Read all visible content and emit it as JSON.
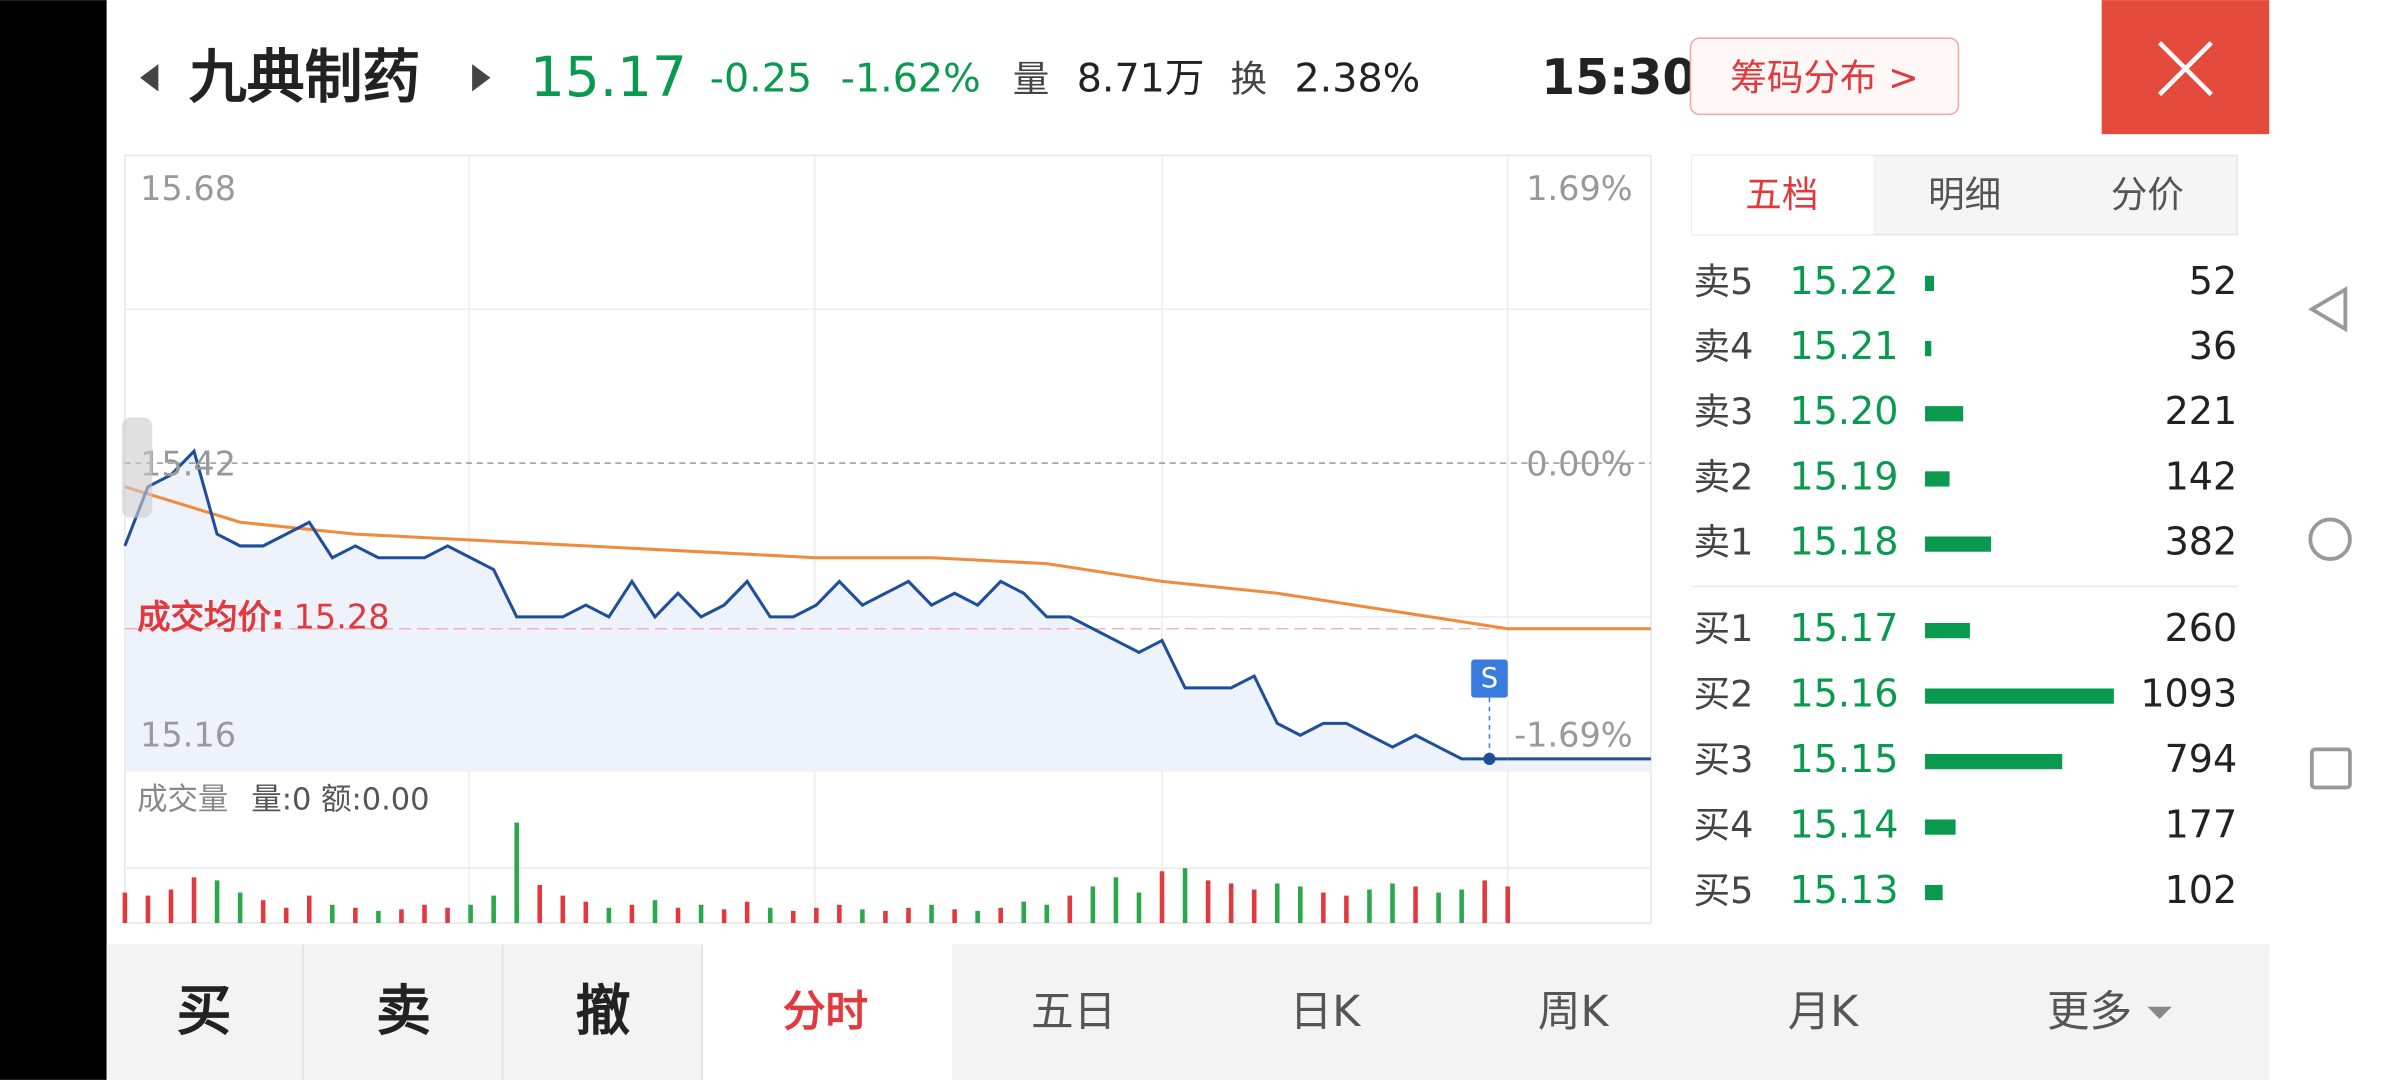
{
  "header": {
    "name": "九典制药",
    "price": "15.17",
    "change": "-0.25",
    "pct": "-1.62%",
    "vol_label": "量",
    "vol": "8.71万",
    "turn_label": "换",
    "turn": "2.38%",
    "time": "15:30",
    "chip_button": "筹码分布 >"
  },
  "chart": {
    "y_left": [
      "15.68",
      "15.42",
      "15.16"
    ],
    "y_right": [
      "1.69%",
      "0.00%",
      "-1.69%"
    ],
    "avg_label": "成交均价:",
    "avg_value": "15.28",
    "marker": "S",
    "volume_title": "成交量",
    "volume_info": "量:0 额:0.00",
    "ylim": [
      15.16,
      15.68
    ],
    "xlim": [
      0,
      240
    ],
    "price": [
      15.35,
      15.4,
      15.41,
      15.43,
      15.36,
      15.35,
      15.35,
      15.36,
      15.37,
      15.34,
      15.35,
      15.34,
      15.34,
      15.34,
      15.35,
      15.34,
      15.33,
      15.29,
      15.29,
      15.29,
      15.3,
      15.29,
      15.32,
      15.29,
      15.31,
      15.29,
      15.3,
      15.32,
      15.29,
      15.29,
      15.3,
      15.32,
      15.3,
      15.31,
      15.32,
      15.3,
      15.31,
      15.3,
      15.32,
      15.31,
      15.29,
      15.29,
      15.28,
      15.27,
      15.26,
      15.27,
      15.23,
      15.23,
      15.23,
      15.24,
      15.2,
      15.19,
      15.2,
      15.2,
      15.19,
      15.18,
      15.19,
      15.18,
      15.17,
      15.17,
      15.17
    ],
    "avg": [
      15.4,
      15.37,
      15.36,
      15.355,
      15.35,
      15.345,
      15.34,
      15.34,
      15.335,
      15.32,
      15.31,
      15.295,
      15.28
    ],
    "vol_ylim": [
      0,
      100
    ],
    "volume": [
      20,
      18,
      22,
      30,
      28,
      20,
      15,
      10,
      18,
      12,
      10,
      8,
      9,
      12,
      10,
      12,
      18,
      66,
      25,
      18,
      14,
      10,
      12,
      15,
      10,
      12,
      9,
      14,
      10,
      8,
      10,
      12,
      9,
      8,
      10,
      12,
      9,
      8,
      10,
      14,
      12,
      18,
      24,
      30,
      20,
      34,
      36,
      28,
      26,
      22,
      26,
      24,
      20,
      18,
      22,
      26,
      24,
      20,
      22,
      28,
      24
    ]
  },
  "orderbook": {
    "tabs": [
      "五档",
      "明细",
      "分价"
    ],
    "asks": [
      {
        "label": "卖5",
        "price": "15.22",
        "volume": 52
      },
      {
        "label": "卖4",
        "price": "15.21",
        "volume": 36
      },
      {
        "label": "卖3",
        "price": "15.20",
        "volume": 221
      },
      {
        "label": "卖2",
        "price": "15.19",
        "volume": 142
      },
      {
        "label": "卖1",
        "price": "15.18",
        "volume": 382
      }
    ],
    "bids": [
      {
        "label": "买1",
        "price": "15.17",
        "volume": 260
      },
      {
        "label": "买2",
        "price": "15.16",
        "volume": 1093
      },
      {
        "label": "买3",
        "price": "15.15",
        "volume": 794
      },
      {
        "label": "买4",
        "price": "15.14",
        "volume": 177
      },
      {
        "label": "买5",
        "price": "15.13",
        "volume": 102
      }
    ]
  },
  "tabs": [
    "买",
    "卖",
    "撤",
    "分时",
    "五日",
    "日K",
    "周K",
    "月K",
    "更多"
  ]
}
